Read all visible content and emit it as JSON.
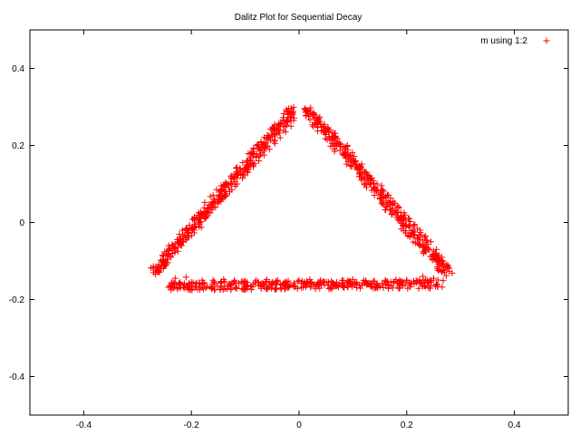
{
  "chart_data": {
    "type": "scatter",
    "title": "Dalitz Plot for Sequential Decay",
    "xlabel": "",
    "ylabel": "",
    "xlim": [
      -0.5,
      0.5
    ],
    "ylim": [
      -0.5,
      0.5
    ],
    "x_ticks": [
      -0.4,
      -0.2,
      0,
      0.2,
      0.4
    ],
    "y_ticks": [
      -0.4,
      -0.2,
      0,
      0.2,
      0.4
    ],
    "x_tick_labels": [
      "-0.4",
      "-0.2",
      "0",
      "0.2",
      "0.4"
    ],
    "y_tick_labels": [
      "-0.4",
      "-0.2",
      "0",
      "0.2",
      "0.4"
    ],
    "grid": false,
    "legend_position": "top-right",
    "marker": "plus",
    "series": [
      {
        "name": "m using 1:2",
        "color": "#ff0000",
        "points": [
          [
            -0.27,
            -0.13
          ],
          [
            -0.26,
            -0.125
          ],
          [
            -0.25,
            -0.11
          ],
          [
            -0.245,
            -0.095
          ],
          [
            -0.235,
            -0.08
          ],
          [
            -0.225,
            -0.065
          ],
          [
            -0.215,
            -0.05
          ],
          [
            -0.205,
            -0.035
          ],
          [
            -0.195,
            -0.02
          ],
          [
            -0.185,
            -0.005
          ],
          [
            -0.175,
            0.01
          ],
          [
            -0.165,
            0.025
          ],
          [
            -0.155,
            0.04
          ],
          [
            -0.145,
            0.055
          ],
          [
            -0.135,
            0.07
          ],
          [
            -0.125,
            0.085
          ],
          [
            -0.115,
            0.1
          ],
          [
            -0.105,
            0.115
          ],
          [
            -0.095,
            0.13
          ],
          [
            -0.085,
            0.145
          ],
          [
            -0.075,
            0.16
          ],
          [
            -0.065,
            0.175
          ],
          [
            -0.055,
            0.19
          ],
          [
            -0.045,
            0.205
          ],
          [
            -0.035,
            0.22
          ],
          [
            -0.025,
            0.235
          ],
          [
            -0.015,
            0.25
          ],
          [
            -0.01,
            0.265
          ],
          [
            -0.02,
            0.28
          ],
          [
            -0.015,
            0.295
          ],
          [
            0.015,
            0.29
          ],
          [
            0.025,
            0.28
          ],
          [
            0.035,
            0.265
          ],
          [
            0.045,
            0.25
          ],
          [
            0.055,
            0.235
          ],
          [
            0.065,
            0.22
          ],
          [
            0.075,
            0.205
          ],
          [
            0.085,
            0.19
          ],
          [
            0.095,
            0.175
          ],
          [
            0.105,
            0.16
          ],
          [
            0.115,
            0.145
          ],
          [
            0.125,
            0.13
          ],
          [
            0.135,
            0.115
          ],
          [
            0.145,
            0.1
          ],
          [
            0.155,
            0.085
          ],
          [
            0.165,
            0.07
          ],
          [
            0.175,
            0.055
          ],
          [
            0.185,
            0.04
          ],
          [
            0.195,
            0.025
          ],
          [
            0.205,
            0.01
          ],
          [
            0.215,
            -0.005
          ],
          [
            0.225,
            -0.02
          ],
          [
            0.235,
            -0.035
          ],
          [
            0.245,
            -0.05
          ],
          [
            0.255,
            -0.07
          ],
          [
            0.265,
            -0.09
          ],
          [
            0.275,
            -0.115
          ],
          [
            0.27,
            -0.13
          ],
          [
            -0.24,
            -0.165
          ],
          [
            -0.22,
            -0.16
          ],
          [
            -0.2,
            -0.155
          ],
          [
            -0.18,
            -0.15
          ],
          [
            -0.16,
            -0.15
          ],
          [
            -0.14,
            -0.148
          ],
          [
            -0.12,
            -0.15
          ],
          [
            -0.1,
            -0.152
          ],
          [
            -0.08,
            -0.15
          ],
          [
            -0.06,
            -0.148
          ],
          [
            -0.04,
            -0.15
          ],
          [
            -0.02,
            -0.152
          ],
          [
            0.0,
            -0.15
          ],
          [
            0.02,
            -0.148
          ],
          [
            0.04,
            -0.15
          ],
          [
            0.06,
            -0.152
          ],
          [
            0.08,
            -0.15
          ],
          [
            0.1,
            -0.148
          ],
          [
            0.12,
            -0.15
          ],
          [
            0.14,
            -0.152
          ],
          [
            0.16,
            -0.15
          ],
          [
            0.18,
            -0.148
          ],
          [
            0.2,
            -0.15
          ],
          [
            0.22,
            -0.152
          ],
          [
            0.24,
            -0.155
          ],
          [
            0.255,
            -0.16
          ],
          [
            0.25,
            -0.145
          ],
          [
            -0.23,
            -0.145
          ],
          [
            -0.21,
            -0.142
          ],
          [
            0.23,
            -0.14
          ]
        ]
      }
    ]
  }
}
